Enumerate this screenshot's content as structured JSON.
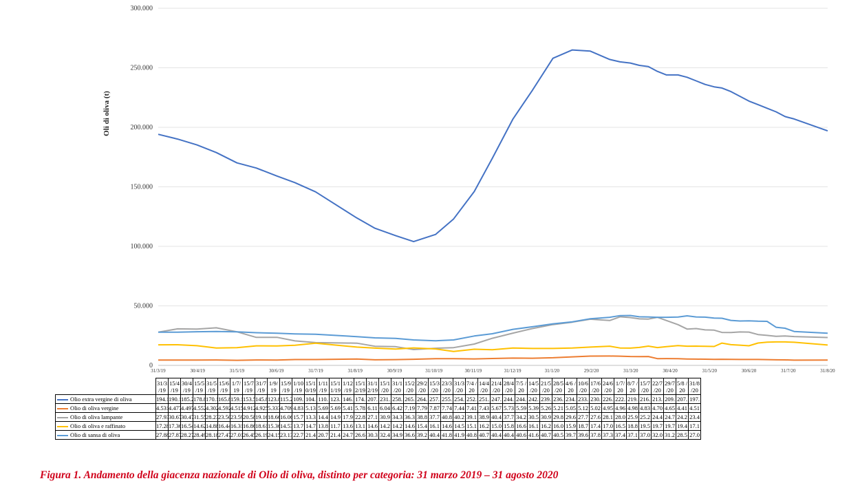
{
  "chart_data": {
    "type": "line",
    "title": "",
    "ylabel": "Oli di oliva (t)",
    "xlabel": "",
    "ylim": [
      0,
      300000
    ],
    "yticks": [
      "0",
      "50.000",
      "100.000",
      "150.000",
      "200.000",
      "250.000",
      "300.000"
    ],
    "xticks": [
      "31/3/19",
      "30/4/19",
      "31/5/19",
      "30/6/19",
      "31/7/19",
      "31/8/19",
      "30/9/19",
      "31/10/19",
      "30/11/19",
      "31/12/19",
      "31/1/20",
      "29/2/20",
      "31/3/20",
      "30/4/20",
      "31/5/20",
      "30/6/20",
      "31/7/20",
      "31/8/20"
    ],
    "grid": "horizontal",
    "legend": "table",
    "categories": [
      "31/3\n/19",
      "15/4\n/19",
      "30/4\n/19",
      "15/5\n/19",
      "31/5\n/19",
      "15/6\n/19",
      "1/7/\n19",
      "15/7\n/19",
      "31/7\n/19",
      "1/9/\n19",
      "15/9\n/19",
      "1/10\n/19",
      "15/1\n0/19",
      "1/11\n/19",
      "15/1\n1/19",
      "1/12\n/19",
      "15/1\n2/19",
      "31/1\n2/19",
      "15/1\n/20",
      "31/1\n/20",
      "15/2\n/20",
      "29/2\n/20",
      "15/3\n/20",
      "23/3\n/20",
      "31/3\n/20",
      "7/4\n/20",
      "14/4\n/20",
      "21/4\n/20",
      "28/4\n/20",
      "7/5\n/20",
      "14/5\n/20",
      "21/5\n/20",
      "28/5\n/20",
      "4/6\n/20",
      "10/6\n/20",
      "17/6\n/20",
      "24/6\n/20",
      "1/7/\n20",
      "8/7\n/20",
      "15/7\n/20",
      "22/7\n/20",
      "29/7\n/20",
      "5/8\n/20",
      "31/8\n/20"
    ],
    "dates": [
      "2019-03-31",
      "2019-04-15",
      "2019-04-30",
      "2019-05-15",
      "2019-05-31",
      "2019-06-15",
      "2019-07-01",
      "2019-07-15",
      "2019-07-31",
      "2019-09-01",
      "2019-09-15",
      "2019-10-01",
      "2019-10-15",
      "2019-11-01",
      "2019-11-15",
      "2019-12-01",
      "2019-12-15",
      "2019-12-31",
      "2020-01-15",
      "2020-01-31",
      "2020-02-15",
      "2020-02-29",
      "2020-03-15",
      "2020-03-23",
      "2020-03-31",
      "2020-04-07",
      "2020-04-14",
      "2020-04-21",
      "2020-04-28",
      "2020-05-07",
      "2020-05-14",
      "2020-05-21",
      "2020-05-28",
      "2020-06-04",
      "2020-06-10",
      "2020-06-17",
      "2020-06-24",
      "2020-07-01",
      "2020-07-08",
      "2020-07-15",
      "2020-07-22",
      "2020-07-29",
      "2020-08-05",
      "2020-08-31"
    ],
    "series": [
      {
        "name": "Olio extra vergine di oliva",
        "color": "#4472c4",
        "labels": [
          "194.1",
          "190.1",
          "185.2",
          "178.8",
          "170.1",
          "165.8",
          "159.1",
          "153.5",
          "145.8",
          "123.8",
          "115.2",
          "109.",
          "104.",
          "110.",
          "123.",
          "146.",
          "174.",
          "207.",
          "231.",
          "258.",
          "265.",
          "264.",
          "257.",
          "255.",
          "254.",
          "252.",
          "251.",
          "247.",
          "244.",
          "244.",
          "242.",
          "239.",
          "236.",
          "234.",
          "233.",
          "230.",
          "226.",
          "222.",
          "219.",
          "216.",
          "213.",
          "209.",
          "207.",
          "197."
        ],
        "values": [
          194100,
          190100,
          185200,
          178800,
          170100,
          165800,
          159100,
          153500,
          145800,
          123800,
          115200,
          109000,
          104000,
          110000,
          123000,
          146000,
          174000,
          207000,
          231000,
          258000,
          265000,
          264000,
          257000,
          255000,
          254000,
          252000,
          251000,
          247000,
          244000,
          244000,
          242000,
          239000,
          236000,
          234000,
          233000,
          230000,
          226000,
          222000,
          219000,
          216000,
          213000,
          209000,
          207000,
          197000
        ]
      },
      {
        "name": "Olio di oliva vergine",
        "color": "#ed7d31",
        "labels": [
          "4.531",
          "4.477",
          "4.497",
          "4.552",
          "4.302",
          "4.592",
          "4.515",
          "4.912",
          "4.925",
          "5.333",
          "4.709",
          "4.83",
          "5.13",
          "5.69",
          "5.69",
          "5.41",
          "5.78",
          "6.11",
          "6.04",
          "6.42",
          "7.19",
          "7.79",
          "7.87",
          "7.74",
          "7.44",
          "7.41",
          "7.43",
          "5.67",
          "5.73",
          "5.59",
          "5.39",
          "5.26",
          "5.21",
          "5.05",
          "5.12",
          "5.02",
          "4.95",
          "4.96",
          "4.98",
          "4.83",
          "4.70",
          "4.65",
          "4.41",
          "4.51"
        ],
        "values": [
          4531,
          4477,
          4497,
          4552,
          4302,
          4592,
          4515,
          4912,
          4925,
          5333,
          4709,
          4830,
          5130,
          5690,
          5690,
          5410,
          5780,
          6110,
          6040,
          6420,
          7190,
          7790,
          7870,
          7740,
          7440,
          7410,
          7430,
          5670,
          5730,
          5590,
          5390,
          5260,
          5210,
          5050,
          5120,
          5020,
          4950,
          4960,
          4980,
          4830,
          4700,
          4650,
          4410,
          4510
        ]
      },
      {
        "name": "Olio di oliva lampante",
        "color": "#a5a5a5",
        "labels": [
          "27.93",
          "30.67",
          "30.47",
          "31.55",
          "28.23",
          "23.50",
          "23.59",
          "20.58",
          "19.16",
          "18.66",
          "16.06",
          "15.7",
          "13.3",
          "14.4",
          "14.9",
          "17.9",
          "22.8",
          "27.1",
          "30.9",
          "34.3",
          "36.3",
          "38.8",
          "37.7",
          "40.8",
          "40.2",
          "39.1",
          "38.9",
          "40.4",
          "37.7",
          "34.2",
          "30.5",
          "30.9",
          "29.8",
          "29.6",
          "27.7",
          "27.6",
          "28.1",
          "28.0",
          "25.9",
          "25.2",
          "24.4",
          "24.7",
          "24.2",
          "23.4"
        ],
        "values": [
          27930,
          30670,
          30470,
          31550,
          28230,
          23500,
          23590,
          20580,
          19160,
          18660,
          16060,
          15700,
          13300,
          14400,
          14900,
          17900,
          22800,
          27100,
          30900,
          34300,
          36300,
          38800,
          37700,
          40800,
          40200,
          39100,
          38900,
          40400,
          37700,
          34200,
          30500,
          30900,
          29800,
          29600,
          27700,
          27600,
          28100,
          28000,
          25900,
          25200,
          24400,
          24700,
          24200,
          23400
        ]
      },
      {
        "name": "Olio di oliva e raffinato",
        "color": "#ffc000",
        "labels": [
          "17.28",
          "17.36",
          "16.54",
          "14.62",
          "14.88",
          "16.44",
          "16.31",
          "16.86",
          "18.61",
          "15.36",
          "14.53",
          "13.7",
          "14.7",
          "13.8",
          "11.7",
          "13.6",
          "13.1",
          "14.6",
          "14.2",
          "14.2",
          "14.6",
          "15.4",
          "16.1",
          "14.6",
          "14.5",
          "15.1",
          "16.2",
          "15.0",
          "15.8",
          "16.6",
          "16.1",
          "16.2",
          "16.0",
          "15.9",
          "18.7",
          "17.4",
          "17.0",
          "16.5",
          "18.8",
          "19.5",
          "19.7",
          "19.7",
          "19.4",
          "17.1"
        ],
        "values": [
          17280,
          17360,
          16540,
          14620,
          14880,
          16440,
          16310,
          16860,
          18610,
          15360,
          14530,
          13700,
          14700,
          13800,
          11700,
          13600,
          13100,
          14600,
          14200,
          14200,
          14600,
          15400,
          16100,
          14600,
          14500,
          15100,
          16200,
          15000,
          15800,
          16600,
          16100,
          16200,
          16000,
          15900,
          18700,
          17400,
          17000,
          16500,
          18800,
          19500,
          19700,
          19700,
          19400,
          17100
        ]
      },
      {
        "name": "Olio di sansa di oliva",
        "color": "#5b9bd5",
        "labels": [
          "27.88",
          "27.87",
          "28.27",
          "28.49",
          "28.18",
          "27.47",
          "27.01",
          "26.45",
          "26.19",
          "24.15",
          "23.13",
          "22.7",
          "21.4",
          "20.7",
          "21.4",
          "24.7",
          "26.6",
          "30.3",
          "32.4",
          "34.9",
          "36.6",
          "39.2",
          "40.4",
          "41.8",
          "41.9",
          "40.8",
          "40.7",
          "40.4",
          "40.4",
          "40.6",
          "41.6",
          "40.7",
          "40.5",
          "39.7",
          "39.6",
          "37.8",
          "37.3",
          "37.4",
          "37.1",
          "37.0",
          "32.0",
          "31.2",
          "28.5",
          "27.0"
        ],
        "values": [
          27880,
          27870,
          28270,
          28490,
          28180,
          27470,
          27010,
          26450,
          26190,
          24150,
          23130,
          22700,
          21400,
          20700,
          21400,
          24700,
          26600,
          30300,
          32400,
          34900,
          36600,
          39200,
          40400,
          41800,
          41900,
          40800,
          40700,
          40400,
          40400,
          40600,
          41600,
          40700,
          40500,
          39700,
          39600,
          37800,
          37300,
          37400,
          37100,
          37000,
          32000,
          31200,
          28500,
          27000
        ]
      }
    ]
  },
  "caption": "Figura 1. Andamento della giacenza nazionale di Olio di oliva, distinto per categoria: 31 marzo 2019 – 31 agosto 2020"
}
